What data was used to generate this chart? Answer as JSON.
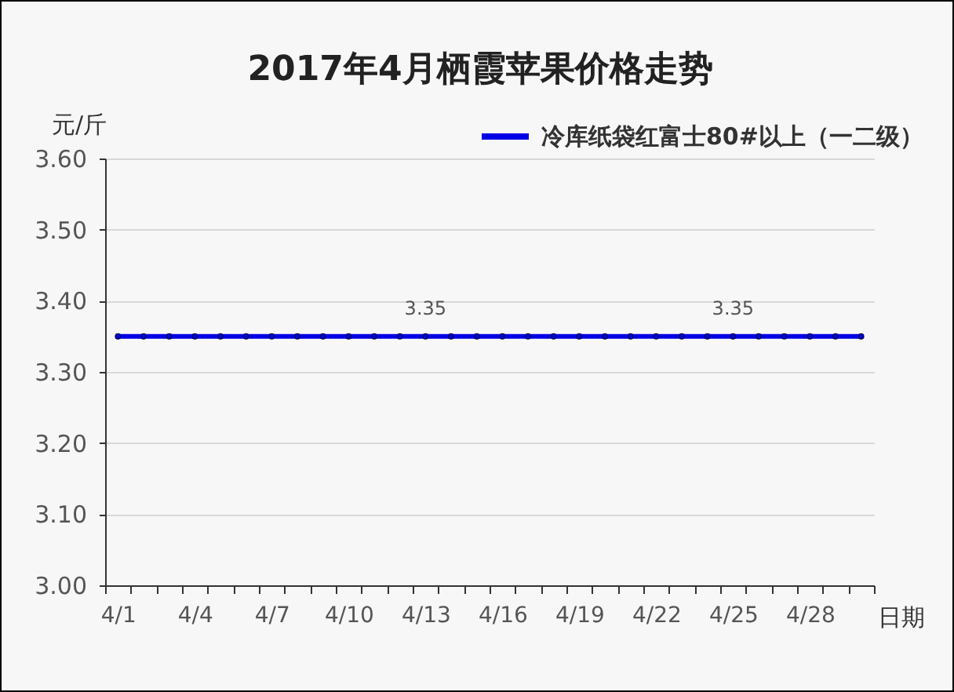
{
  "chart_data": {
    "type": "line",
    "title": "2017年4月栖霞苹果价格走势",
    "xlabel": "日期",
    "ylabel": "元/斤",
    "categories": [
      "4/1",
      null,
      null,
      "4/4",
      null,
      null,
      "4/7",
      null,
      null,
      "4/10",
      null,
      null,
      "4/13",
      null,
      null,
      "4/16",
      null,
      null,
      "4/19",
      null,
      null,
      "4/22",
      null,
      null,
      "4/25",
      null,
      null,
      "4/28",
      null,
      null
    ],
    "series": [
      {
        "name": "冷库纸袋红富士80#以上（一二级）",
        "color": "#0000e6",
        "values": [
          3.35,
          3.35,
          3.35,
          3.35,
          3.35,
          3.35,
          3.35,
          3.35,
          3.35,
          3.35,
          3.35,
          3.35,
          3.35,
          3.35,
          3.35,
          3.35,
          3.35,
          3.35,
          3.35,
          3.35,
          3.35,
          3.35,
          3.35,
          3.35,
          3.35,
          3.35,
          3.35,
          3.35,
          3.35,
          3.35
        ],
        "value_labels": [
          null,
          null,
          null,
          null,
          null,
          null,
          null,
          null,
          null,
          null,
          null,
          null,
          "3.35",
          null,
          null,
          null,
          null,
          null,
          null,
          null,
          null,
          null,
          null,
          null,
          "3.35",
          null,
          null,
          null,
          null,
          null
        ]
      }
    ],
    "ylim": [
      3.0,
      3.6
    ],
    "yticks": [
      {
        "value": 3.0,
        "label": "3.00"
      },
      {
        "value": 3.1,
        "label": "3.10"
      },
      {
        "value": 3.2,
        "label": "3.20"
      },
      {
        "value": 3.3,
        "label": "3.30"
      },
      {
        "value": 3.4,
        "label": "3.40"
      },
      {
        "value": 3.5,
        "label": "3.50"
      },
      {
        "value": 3.6,
        "label": "3.60"
      }
    ],
    "grid": "y",
    "legend": "top right",
    "marker": "circle",
    "line_style": "solid"
  }
}
